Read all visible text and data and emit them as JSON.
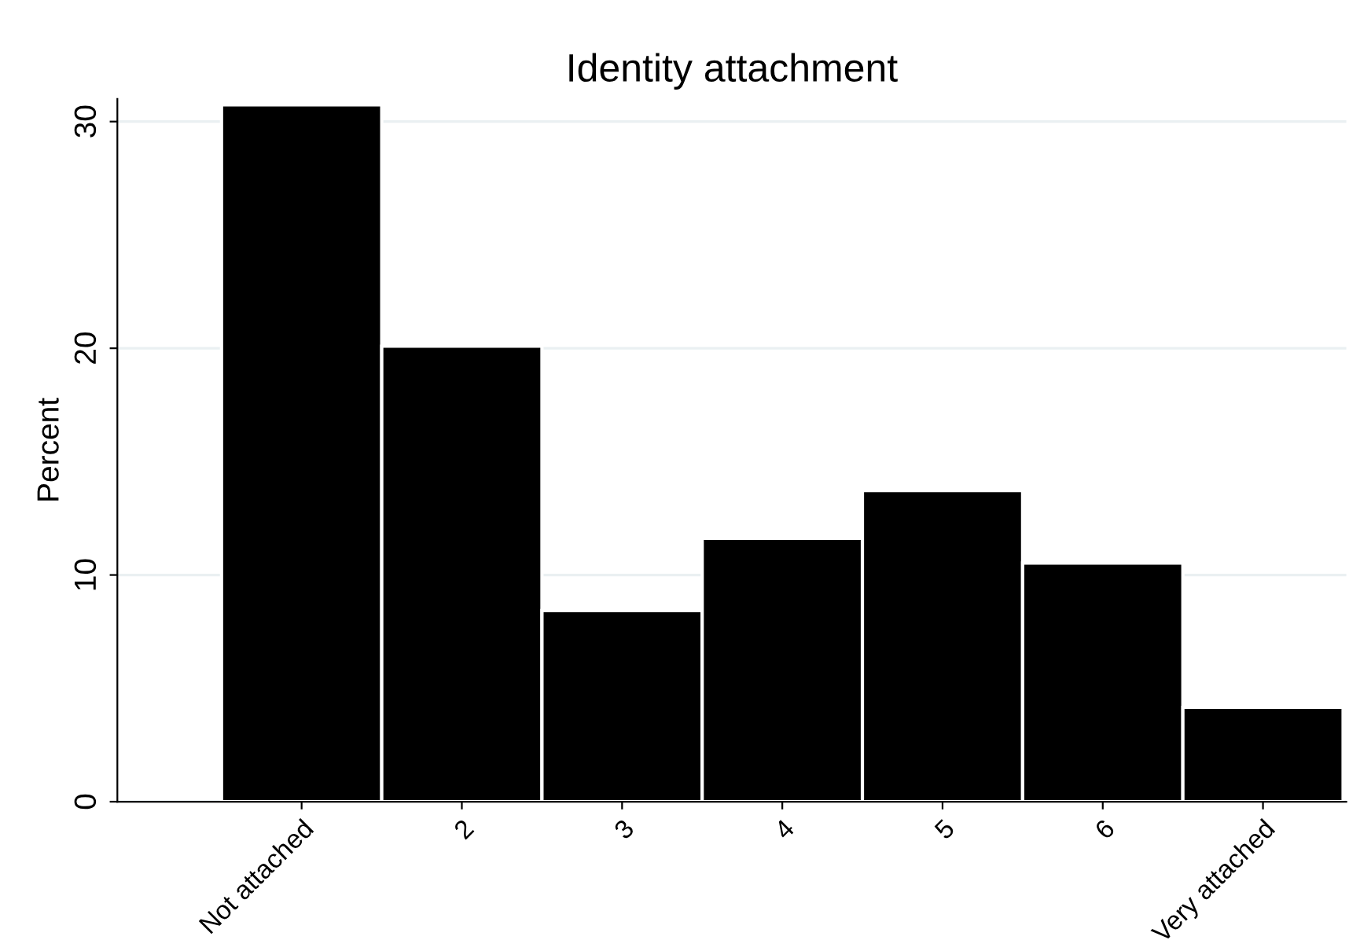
{
  "chart_data": {
    "type": "bar",
    "title": "Identity attachment",
    "ylabel": "Percent",
    "categories": [
      "Not attached",
      "2",
      "3",
      "4",
      "5",
      "6",
      "Very attached"
    ],
    "values": [
      30.74,
      20.09,
      8.43,
      11.62,
      13.72,
      10.53,
      4.16
    ],
    "color": "#000000",
    "ylim": [
      0,
      31
    ],
    "yticks": [
      0,
      10,
      20,
      30
    ],
    "grid": "y"
  }
}
